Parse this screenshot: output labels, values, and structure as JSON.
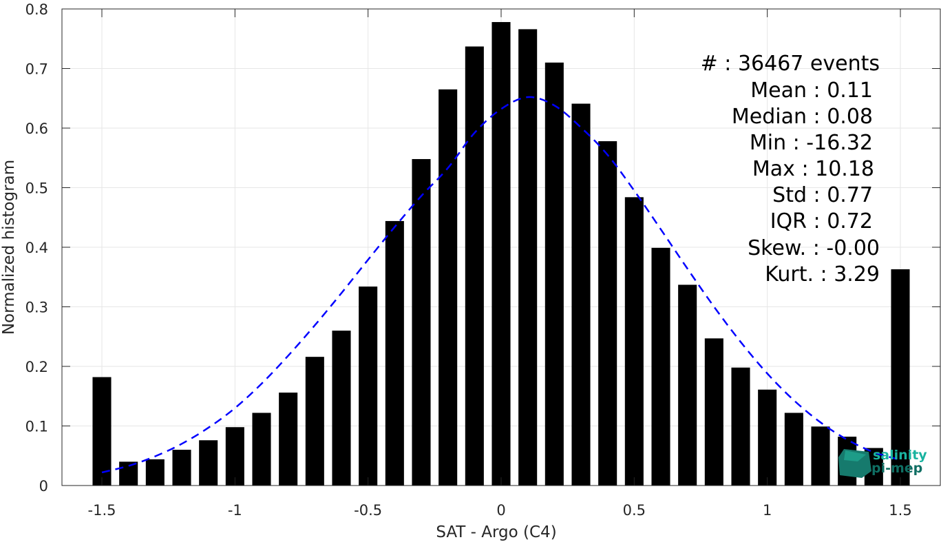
{
  "chart_data": {
    "type": "bar",
    "xlabel": "SAT - Argo (C4)",
    "ylabel": "Normalized histogram",
    "xlim": [
      -1.65,
      1.65
    ],
    "ylim": [
      0,
      0.8
    ],
    "grid": true,
    "x_ticks": [
      -1.5,
      -1,
      -0.5,
      0,
      0.5,
      1,
      1.5
    ],
    "x_tick_labels": [
      "-1.5",
      "-1",
      "-0.5",
      "0",
      "0.5",
      "1",
      "1.5"
    ],
    "y_ticks": [
      0,
      0.1,
      0.2,
      0.3,
      0.4,
      0.5,
      0.6,
      0.7,
      0.8
    ],
    "y_tick_labels": [
      "0",
      "0.1",
      "0.2",
      "0.3",
      "0.4",
      "0.5",
      "0.6",
      "0.7",
      "0.8"
    ],
    "bar_width": 0.07,
    "bar_color": "#000000",
    "x": [
      -1.5,
      -1.4,
      -1.3,
      -1.2,
      -1.1,
      -1.0,
      -0.9,
      -0.8,
      -0.7,
      -0.6,
      -0.5,
      -0.4,
      -0.3,
      -0.2,
      -0.1,
      0.0,
      0.1,
      0.2,
      0.3,
      0.4,
      0.5,
      0.6,
      0.7,
      0.8,
      0.9,
      1.0,
      1.1,
      1.2,
      1.3,
      1.4,
      1.5
    ],
    "values": [
      0.182,
      0.04,
      0.044,
      0.06,
      0.076,
      0.098,
      0.122,
      0.156,
      0.216,
      0.26,
      0.334,
      0.444,
      0.548,
      0.665,
      0.737,
      0.778,
      0.766,
      0.71,
      0.641,
      0.578,
      0.484,
      0.399,
      0.337,
      0.247,
      0.198,
      0.161,
      0.122,
      0.099,
      0.082,
      0.063,
      0.363
    ],
    "fit_curve": {
      "style": "dashed",
      "color": "#0000ff",
      "x": [
        -1.5,
        -1.4,
        -1.3,
        -1.2,
        -1.1,
        -1.0,
        -0.9,
        -0.8,
        -0.7,
        -0.6,
        -0.5,
        -0.4,
        -0.3,
        -0.2,
        -0.1,
        0.0,
        0.1,
        0.2,
        0.3,
        0.4,
        0.5,
        0.6,
        0.7,
        0.8,
        0.9,
        1.0,
        1.1,
        1.2,
        1.3,
        1.4,
        1.5
      ],
      "y": [
        0.022,
        0.033,
        0.049,
        0.07,
        0.097,
        0.13,
        0.171,
        0.218,
        0.269,
        0.323,
        0.379,
        0.434,
        0.486,
        0.533,
        0.592,
        0.632,
        0.652,
        0.638,
        0.601,
        0.555,
        0.495,
        0.43,
        0.364,
        0.3,
        0.241,
        0.188,
        0.143,
        0.106,
        0.077,
        0.056,
        0.043
      ]
    }
  },
  "stats": [
    {
      "label": "#  : 36467 events"
    },
    {
      "label": "Mean : 0.11"
    },
    {
      "label": "Median : 0.08"
    },
    {
      "label": "Min : -16.32"
    },
    {
      "label": "Max : 10.18"
    },
    {
      "label": "Std : 0.77"
    },
    {
      "label": "IQR : 0.72"
    },
    {
      "label": "Skew. : -0.00"
    },
    {
      "label": "Kurt. : 3.29"
    }
  ],
  "logo": {
    "line1": "salinity",
    "line2": "pi-mep",
    "color1": "#19b3a0",
    "color2": "#0f6e63"
  }
}
